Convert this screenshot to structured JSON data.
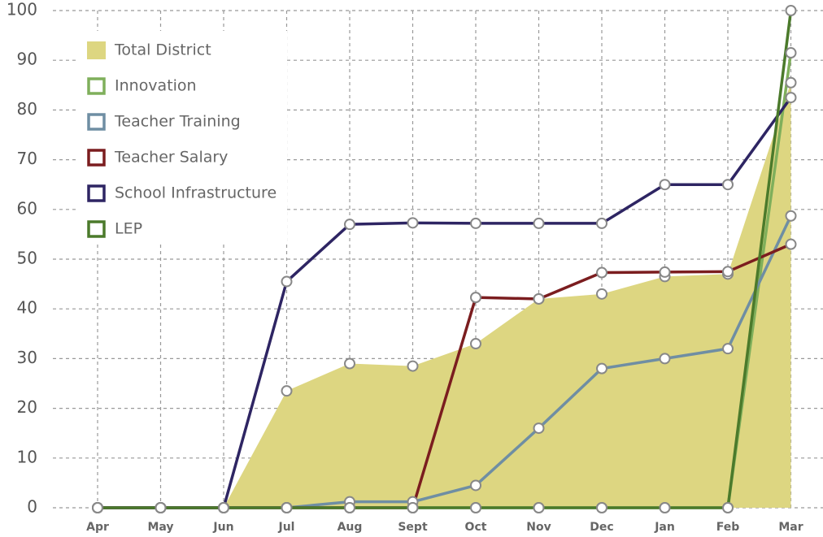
{
  "chart_data": {
    "type": "line",
    "categories": [
      "Apr",
      "May",
      "Jun",
      "Jul",
      "Aug",
      "Sept",
      "Oct",
      "Nov",
      "Dec",
      "Jan",
      "Feb",
      "Mar"
    ],
    "series": [
      {
        "name": "Total District",
        "color": "#ddd681",
        "area": true,
        "values": [
          0,
          0,
          0,
          23.5,
          29,
          28.5,
          33,
          42,
          43,
          46.5,
          47,
          85.5
        ]
      },
      {
        "name": "Innovation",
        "color": "#7faf5b",
        "values": [
          0,
          0,
          0,
          0,
          0,
          0,
          0,
          0,
          0,
          0,
          0,
          91.5
        ]
      },
      {
        "name": "Teacher Training",
        "color": "#6f8ea3",
        "values": [
          0,
          0,
          0,
          0,
          1.2,
          1.2,
          4.5,
          16,
          28,
          30,
          32,
          58.7
        ]
      },
      {
        "name": "Teacher Salary",
        "color": "#7b1d1f",
        "values": [
          0,
          0,
          0,
          0,
          0,
          0,
          42.3,
          42,
          47.3,
          47.4,
          47.5,
          53
        ]
      },
      {
        "name": "School Infrastructure",
        "color": "#2e2563",
        "values": [
          0,
          0,
          0,
          45.5,
          57,
          57.3,
          57.2,
          57.2,
          57.2,
          65,
          65,
          82.5
        ]
      },
      {
        "name": "LEP",
        "color": "#4b7a2b",
        "values": [
          0,
          0,
          0,
          0,
          0,
          0,
          0,
          0,
          0,
          0,
          0,
          100
        ]
      }
    ],
    "ylim": [
      0,
      100
    ],
    "yticks": [
      0,
      10,
      20,
      30,
      40,
      50,
      60,
      70,
      80,
      90,
      100
    ],
    "grid": true,
    "legend": "upper left"
  }
}
